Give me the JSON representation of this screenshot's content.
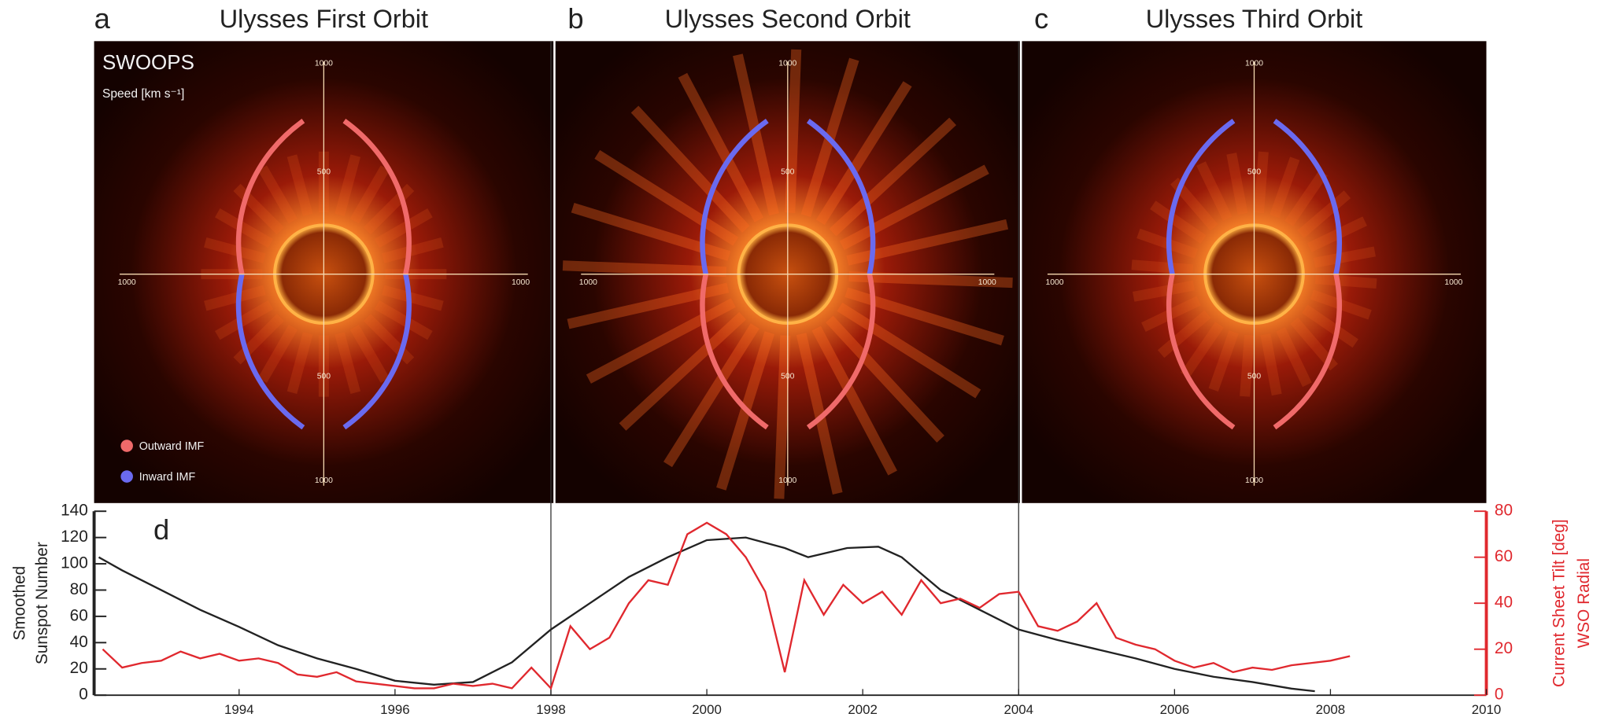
{
  "panels": [
    {
      "letter": "a",
      "title": "Ulysses First Orbit",
      "axis_labels": [
        "1000",
        "500",
        "1000",
        "1000",
        "500",
        "1000"
      ]
    },
    {
      "letter": "b",
      "title": "Ulysses Second Orbit",
      "axis_labels": [
        "1000",
        "500",
        "1000",
        "1000",
        "500",
        "1000"
      ]
    },
    {
      "letter": "c",
      "title": "Ulysses Third Orbit",
      "axis_labels": [
        "1000",
        "500",
        "1000",
        "1000",
        "500",
        "1000"
      ]
    }
  ],
  "instrument": "SWOOPS",
  "speed_label": "Speed [km s⁻¹]",
  "legend": [
    {
      "name": "Outward IMF",
      "color": "#f06a6a"
    },
    {
      "name": "Inward IMF",
      "color": "#6a6af0"
    }
  ],
  "chart_data": {
    "type": "line",
    "panel_label": "d",
    "ylabel": [
      "Smoothed",
      "Sunspot Number"
    ],
    "y2label": [
      "Current Sheet Tilt [deg]",
      "WSO Radial"
    ],
    "xlim": [
      1992.14,
      2010
    ],
    "xticks": [
      1994,
      1996,
      1998,
      2000,
      2002,
      2004,
      2006,
      2008,
      2010
    ],
    "ylim": [
      0,
      140
    ],
    "yticks": [
      0,
      20,
      40,
      60,
      80,
      100,
      120,
      140
    ],
    "y2lim": [
      0,
      80
    ],
    "y2ticks": [
      0,
      20,
      40,
      60,
      80
    ],
    "series": [
      {
        "name": "Smoothed Sunspot Number",
        "color": "#222222",
        "x": [
          1992.2,
          1992.5,
          1993,
          1993.5,
          1994,
          1994.5,
          1995,
          1995.5,
          1996,
          1996.5,
          1997,
          1997.5,
          1998,
          1998.5,
          1999,
          1999.5,
          2000,
          2000.5,
          2001,
          2001.3,
          2001.8,
          2002.2,
          2002.5,
          2003,
          2003.5,
          2004,
          2004.5,
          2005,
          2005.5,
          2006,
          2006.5,
          2007,
          2007.5,
          2007.8
        ],
        "values": [
          105,
          95,
          80,
          65,
          52,
          38,
          28,
          20,
          11,
          8,
          10,
          25,
          50,
          70,
          90,
          105,
          118,
          120,
          112,
          105,
          112,
          113,
          105,
          80,
          65,
          50,
          42,
          35,
          28,
          20,
          14,
          10,
          5,
          3
        ]
      },
      {
        "name": "WSO Radial Current Sheet Tilt",
        "color": "#e0282e",
        "axis": "y2",
        "x": [
          1992.25,
          1992.5,
          1992.75,
          1993,
          1993.25,
          1993.5,
          1993.75,
          1994,
          1994.25,
          1994.5,
          1994.75,
          1995,
          1995.25,
          1995.5,
          1995.75,
          1996,
          1996.25,
          1996.5,
          1996.75,
          1997,
          1997.25,
          1997.5,
          1997.75,
          1998,
          1998.25,
          1998.5,
          1998.75,
          1999,
          1999.25,
          1999.5,
          1999.75,
          2000,
          2000.25,
          2000.5,
          2000.75,
          2001,
          2001.25,
          2001.5,
          2001.75,
          2002,
          2002.25,
          2002.5,
          2002.75,
          2003,
          2003.25,
          2003.5,
          2003.75,
          2004,
          2004.25,
          2004.5,
          2004.75,
          2005,
          2005.25,
          2005.5,
          2005.75,
          2006,
          2006.25,
          2006.5,
          2006.75,
          2007,
          2007.25,
          2007.5,
          2007.75,
          2008,
          2008.25
        ],
        "values": [
          20,
          12,
          14,
          15,
          19,
          16,
          18,
          15,
          16,
          14,
          9,
          8,
          10,
          6,
          5,
          4,
          3,
          3,
          5,
          4,
          5,
          3,
          12,
          3,
          30,
          20,
          25,
          40,
          50,
          48,
          70,
          75,
          70,
          60,
          45,
          10,
          50,
          35,
          48,
          40,
          45,
          35,
          50,
          40,
          42,
          38,
          44,
          45,
          30,
          28,
          32,
          40,
          25,
          22,
          20,
          15,
          12,
          14,
          10,
          12,
          11,
          13,
          14,
          15,
          17
        ]
      }
    ]
  }
}
